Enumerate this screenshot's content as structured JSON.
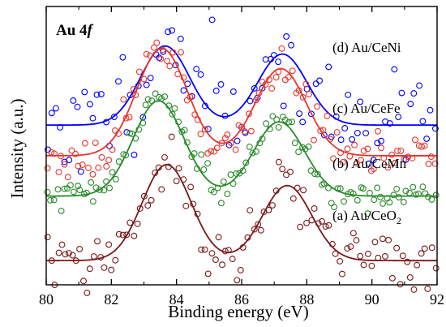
{
  "chart_data": {
    "type": "scatter",
    "title_main": "Au 4",
    "title_italic": "f",
    "xlabel": "Binding energy (eV)",
    "ylabel": "Intensity (a.u.)",
    "xlim": [
      80,
      92
    ],
    "x_ticks": [
      80,
      82,
      84,
      86,
      88,
      90,
      92
    ],
    "y_ticks_labeled": false,
    "series": [
      {
        "name": "(d) Au/CeNi",
        "label_main": "(d) Au/CeNi",
        "label_sub": "",
        "color": "#0000ff",
        "baseline": 0.88,
        "peak1": {
          "center": 83.65,
          "height": 0.98
        },
        "peak2": {
          "center": 87.25,
          "height": 0.88
        },
        "sigma": 0.75,
        "scatter_noise": 0.32,
        "n_points": 95,
        "seed": 11
      },
      {
        "name": "(c) Au/CeFe",
        "label_main": "(c) Au/CeFe",
        "label_sub": "",
        "color": "#e8352c",
        "baseline": 0.5,
        "peak1": {
          "center": 83.55,
          "height": 1.33
        },
        "peak2": {
          "center": 87.2,
          "height": 1.08
        },
        "sigma": 0.78,
        "scatter_noise": 0.12,
        "n_points": 115,
        "seed": 23
      },
      {
        "name": "(b) Au/CeMn",
        "label_main": "(b) Au/CeMn",
        "label_sub": "",
        "color": "#2a8a2a",
        "baseline": 0.0,
        "peak1": {
          "center": 83.45,
          "height": 1.18
        },
        "peak2": {
          "center": 87.15,
          "height": 0.92
        },
        "sigma": 0.78,
        "scatter_noise": 0.09,
        "n_points": 120,
        "seed": 37
      },
      {
        "name": "(a) Au/CeO2",
        "label_main": "(a) Au/CeO",
        "label_sub": "2",
        "color": "#7a1818",
        "baseline": -0.8,
        "peak1": {
          "center": 83.7,
          "height": 1.19
        },
        "peak2": {
          "center": 87.4,
          "height": 0.93
        },
        "sigma": 0.75,
        "scatter_noise": 0.17,
        "n_points": 110,
        "seed": 53
      }
    ]
  }
}
